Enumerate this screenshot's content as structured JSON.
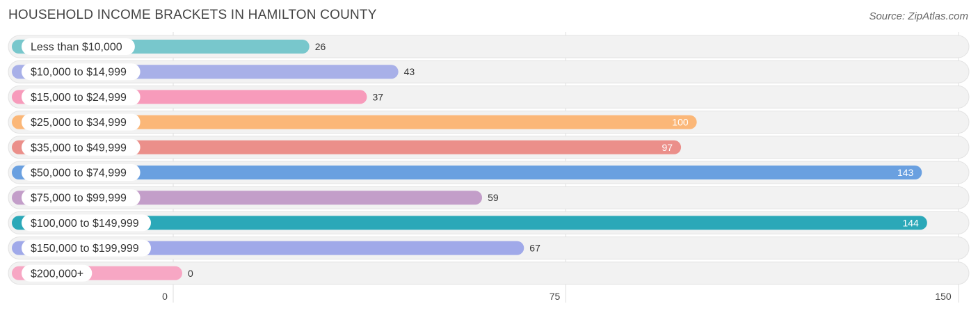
{
  "header": {
    "title": "HOUSEHOLD INCOME BRACKETS IN HAMILTON COUNTY",
    "source": "Source: ZipAtlas.com"
  },
  "chart_data": {
    "type": "bar",
    "orientation": "horizontal",
    "title": "HOUSEHOLD INCOME BRACKETS IN HAMILTON COUNTY",
    "categories": [
      "Less than $10,000",
      "$10,000 to $14,999",
      "$15,000 to $24,999",
      "$25,000 to $34,999",
      "$35,000 to $49,999",
      "$50,000 to $74,999",
      "$75,000 to $99,999",
      "$100,000 to $149,999",
      "$150,000 to $199,999",
      "$200,000+"
    ],
    "values": [
      26,
      43,
      37,
      100,
      97,
      143,
      59,
      144,
      67,
      0
    ],
    "colors": [
      "#78c7cc",
      "#a8b0e8",
      "#f79bbb",
      "#fbb778",
      "#eb8f8a",
      "#6aa0e0",
      "#c39ec9",
      "#2ba8b8",
      "#a0a9e9",
      "#f7a7c4"
    ],
    "xlim": [
      0,
      150
    ],
    "xticks": [
      0,
      75,
      150
    ],
    "grid": true,
    "legend": "none"
  }
}
